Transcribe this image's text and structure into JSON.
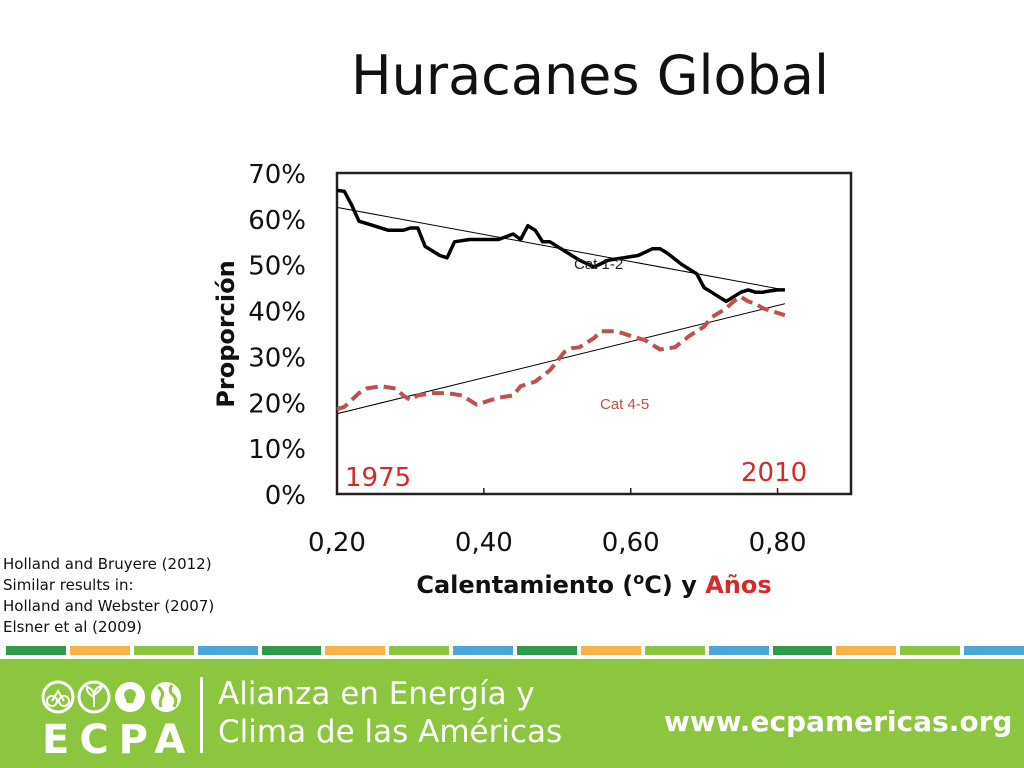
{
  "slide": {
    "title": "Huracanes Global",
    "references": [
      "Holland and Bruyere (2012)",
      "Similar results in:",
      "Holland and Webster (2007)",
      "Elsner et al (2009)"
    ]
  },
  "chart_data": {
    "type": "line",
    "ylabel": "Proporción",
    "xlabel": {
      "main": "Calentamiento (",
      "sup": "o",
      "unit": "C) y ",
      "highlight": "Años"
    },
    "xlim": [
      0.2,
      0.9
    ],
    "ylim": [
      0,
      0.7
    ],
    "x_ticks": [
      "0,20",
      "0,40",
      "0,60",
      "0,80"
    ],
    "x_tick_values": [
      0.2,
      0.4,
      0.6,
      0.8
    ],
    "y_ticks": [
      "0%",
      "10%",
      "20%",
      "30%",
      "40%",
      "50%",
      "60%",
      "70%"
    ],
    "y_tick_values": [
      0,
      0.1,
      0.2,
      0.3,
      0.4,
      0.5,
      0.6,
      0.7
    ],
    "year_labels": {
      "start": "1975",
      "end": "2010"
    },
    "series": [
      {
        "name": "Cat 1-2",
        "color": "#000000",
        "style": "solid",
        "x": [
          0.2,
          0.21,
          0.22,
          0.23,
          0.25,
          0.27,
          0.29,
          0.3,
          0.31,
          0.32,
          0.34,
          0.35,
          0.36,
          0.38,
          0.4,
          0.42,
          0.44,
          0.45,
          0.46,
          0.47,
          0.48,
          0.49,
          0.51,
          0.53,
          0.55,
          0.57,
          0.59,
          0.61,
          0.63,
          0.64,
          0.65,
          0.67,
          0.69,
          0.7,
          0.71,
          0.72,
          0.73,
          0.74,
          0.75,
          0.76,
          0.77,
          0.78,
          0.79,
          0.8,
          0.81
        ],
        "y": [
          0.662,
          0.66,
          0.63,
          0.595,
          0.585,
          0.575,
          0.575,
          0.58,
          0.58,
          0.54,
          0.52,
          0.515,
          0.55,
          0.555,
          0.555,
          0.555,
          0.567,
          0.555,
          0.585,
          0.575,
          0.55,
          0.55,
          0.53,
          0.51,
          0.495,
          0.51,
          0.515,
          0.52,
          0.535,
          0.535,
          0.525,
          0.5,
          0.48,
          0.45,
          0.44,
          0.43,
          0.42,
          0.43,
          0.44,
          0.445,
          0.44,
          0.44,
          0.443,
          0.445,
          0.445
        ]
      },
      {
        "name": "Cat 4-5",
        "color": "#c0504d",
        "style": "dashed",
        "x": [
          0.2,
          0.21,
          0.22,
          0.23,
          0.24,
          0.26,
          0.28,
          0.29,
          0.3,
          0.31,
          0.33,
          0.35,
          0.37,
          0.39,
          0.4,
          0.42,
          0.44,
          0.45,
          0.46,
          0.47,
          0.49,
          0.5,
          0.51,
          0.52,
          0.53,
          0.55,
          0.56,
          0.58,
          0.6,
          0.62,
          0.64,
          0.66,
          0.68,
          0.7,
          0.71,
          0.72,
          0.73,
          0.74,
          0.75,
          0.76,
          0.77,
          0.78,
          0.79,
          0.8,
          0.81
        ],
        "y": [
          0.185,
          0.19,
          0.205,
          0.22,
          0.23,
          0.235,
          0.23,
          0.215,
          0.205,
          0.215,
          0.22,
          0.22,
          0.215,
          0.195,
          0.2,
          0.21,
          0.215,
          0.235,
          0.24,
          0.245,
          0.27,
          0.29,
          0.31,
          0.318,
          0.32,
          0.34,
          0.355,
          0.355,
          0.345,
          0.335,
          0.315,
          0.32,
          0.345,
          0.365,
          0.385,
          0.395,
          0.405,
          0.42,
          0.43,
          0.42,
          0.415,
          0.405,
          0.4,
          0.395,
          0.39
        ]
      }
    ],
    "trendlines": [
      {
        "series": "Cat 1-2",
        "x": [
          0.2,
          0.81
        ],
        "y": [
          0.625,
          0.445
        ]
      },
      {
        "series": "Cat 4-5",
        "x": [
          0.2,
          0.81
        ],
        "y": [
          0.175,
          0.415
        ]
      }
    ]
  },
  "stripe": {
    "colors": [
      "#2e9a4a",
      "#f7b24a",
      "#8cc63f",
      "#4aa8d8",
      "#2e9a4a",
      "#f7b24a",
      "#8cc63f",
      "#4aa8d8",
      "#2e9a4a",
      "#f7b24a",
      "#8cc63f",
      "#4aa8d8",
      "#2e9a4a",
      "#f7b24a",
      "#8cc63f",
      "#4aa8d8"
    ]
  },
  "footer": {
    "logo_text": "ECPA",
    "logo_icons": [
      "bicycle-circle-icon",
      "plant-circle-icon",
      "bulb-circle-icon",
      "globe-circle-icon"
    ],
    "tagline_line1": "Alianza en Energía y",
    "tagline_line2": "Clima de las Américas",
    "website": "www.ecpamericas.org",
    "background_color": "#8cc63f"
  }
}
